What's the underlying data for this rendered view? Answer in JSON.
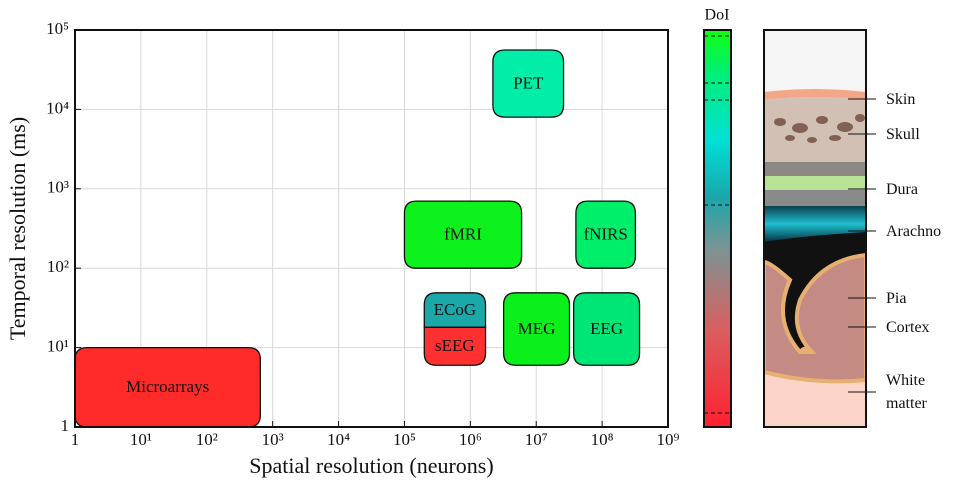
{
  "chart_data": {
    "type": "range",
    "xlabel": "Spatial resolution (neurons)",
    "ylabel": "Temporal resolution (ms)",
    "xscale": "log",
    "yscale": "log",
    "grid": true,
    "xlim": [
      1,
      1000000000
    ],
    "ylim": [
      1,
      100000
    ],
    "xticks": [
      1,
      {
        "value": 10,
        "label": "10¹"
      },
      {
        "value": 100,
        "label": "10²"
      },
      {
        "value": 1000,
        "label": "10³"
      },
      {
        "value": 10000,
        "label": "10⁴"
      },
      {
        "value": 100000,
        "label": "10⁵"
      },
      {
        "value": 1000000,
        "label": "10⁶"
      },
      {
        "value": 10000000,
        "label": "10⁷"
      },
      {
        "value": 100000000,
        "label": "10⁸"
      },
      {
        "value": 1000000000,
        "label": "10⁹"
      }
    ],
    "yticks": [
      1,
      {
        "value": 10,
        "label": "10¹"
      },
      {
        "value": 100,
        "label": "10²"
      },
      {
        "value": 1000,
        "label": "10³"
      },
      {
        "value": 10000,
        "label": "10⁴"
      },
      {
        "value": 100000,
        "label": "10⁵"
      }
    ],
    "series": [
      {
        "name": "Microarrays",
        "color": "#ff2a2a",
        "x": [
          1,
          650
        ],
        "y": [
          1,
          10
        ]
      },
      {
        "name": "fMRI",
        "color": "#0df21c",
        "x": [
          100000,
          6000000
        ],
        "y": [
          100,
          700
        ]
      },
      {
        "name": "PET",
        "color": "#00eea8",
        "x": [
          2200000,
          26000000
        ],
        "y": [
          8000,
          56000
        ]
      },
      {
        "name": "fNIRS",
        "color": "#00ef6a",
        "x": [
          40000000,
          320000000
        ],
        "y": [
          100,
          700
        ]
      },
      {
        "name": "ECoG",
        "color": "#1aa8a8",
        "x": [
          200000,
          1700000
        ],
        "y": [
          18,
          49
        ]
      },
      {
        "name": "sEEG",
        "color": "#ff3030",
        "x": [
          200000,
          1700000
        ],
        "y": [
          6,
          18
        ]
      },
      {
        "name": "MEG",
        "color": "#0bf01a",
        "x": [
          3200000,
          32000000
        ],
        "y": [
          6,
          49
        ]
      },
      {
        "name": "EEG",
        "color": "#00e676",
        "x": [
          37000000,
          370000000
        ],
        "y": [
          6,
          49
        ]
      }
    ],
    "colorbar_label": "DoI"
  },
  "anatomy_labels": [
    "Skin",
    "Skull",
    "Dura",
    "Arachno",
    "Pia",
    "Cortex",
    "White matter"
  ]
}
